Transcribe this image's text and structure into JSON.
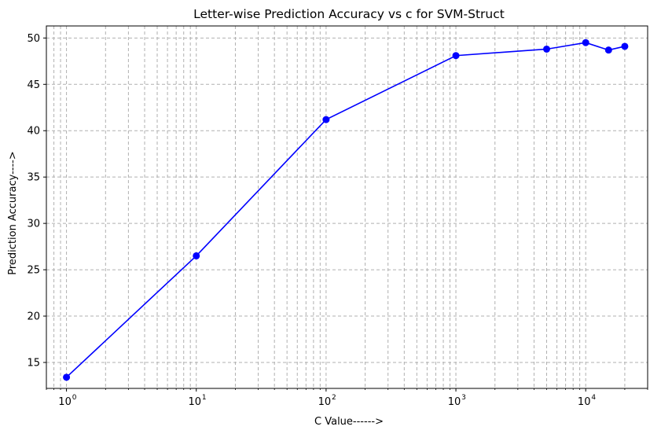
{
  "chart_data": {
    "type": "line",
    "title": "Letter-wise Prediction Accuracy vs c for SVM-Struct",
    "xlabel": "C Value------>",
    "ylabel": "Prediction Accuracy---->",
    "xscale": "log",
    "xlim": [
      0.7,
      30000
    ],
    "ylim": [
      12.2,
      51.3
    ],
    "x_ticks": [
      {
        "value": 1,
        "base": "10",
        "exp": "0"
      },
      {
        "value": 10,
        "base": "10",
        "exp": "1"
      },
      {
        "value": 100,
        "base": "10",
        "exp": "2"
      },
      {
        "value": 1000,
        "base": "10",
        "exp": "3"
      },
      {
        "value": 10000,
        "base": "10",
        "exp": "4"
      }
    ],
    "y_ticks": [
      {
        "value": 15,
        "label": "15"
      },
      {
        "value": 20,
        "label": "20"
      },
      {
        "value": 25,
        "label": "25"
      },
      {
        "value": 30,
        "label": "30"
      },
      {
        "value": 35,
        "label": "35"
      },
      {
        "value": 40,
        "label": "40"
      },
      {
        "value": 45,
        "label": "45"
      },
      {
        "value": 50,
        "label": "50"
      }
    ],
    "grid": true,
    "grid_minor_x": true,
    "series": [
      {
        "color": "#0000ff",
        "marker": "circle",
        "x": [
          1,
          10,
          100,
          1000,
          5000,
          10000,
          15000,
          20000
        ],
        "y": [
          13.4,
          26.5,
          41.2,
          48.1,
          48.8,
          49.5,
          48.7,
          49.1
        ]
      }
    ]
  }
}
